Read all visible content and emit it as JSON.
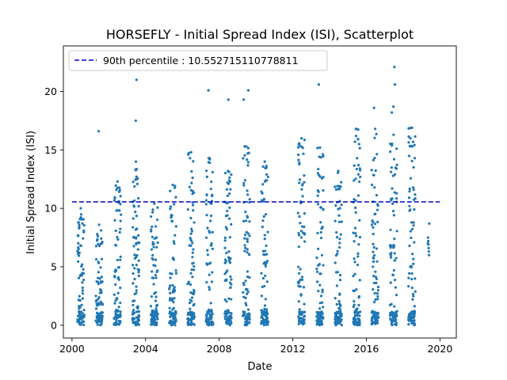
{
  "chart_data": {
    "type": "scatter",
    "title": "HORSEFLY - Initial Spread Index (ISI), Scatterplot",
    "xlabel": "Date",
    "ylabel": "Initial Spread Index (ISI)",
    "x_ticks": [
      "2000",
      "2004",
      "2008",
      "2012",
      "2016",
      "2020"
    ],
    "y_ticks": [
      "0",
      "5",
      "10",
      "15",
      "20"
    ],
    "xlim": [
      "1999-07-14",
      "2020-11-20"
    ],
    "ylim": [
      -1.1,
      23.9
    ],
    "point_color": "#1f77b4",
    "reference_line": {
      "label": "90th percentile : 10.552715110778811",
      "value": 10.552715110778811,
      "x_range": [
        "2000-01-01",
        "2019-12-31"
      ],
      "style": "dashed",
      "color": "#0000cc"
    },
    "legend": {
      "position": "top-left",
      "entries": [
        "90th percentile : 10.552715110778811"
      ]
    },
    "grid": false,
    "series": [
      {
        "seasons": [
          {
            "year": 2000,
            "start": "2000-04-15",
            "end": "2000-08-31",
            "ymax": 10.0
          },
          {
            "year": 2001,
            "start": "2001-04-15",
            "end": "2001-08-31",
            "ymax": 8.6
          },
          {
            "year": 2002,
            "start": "2002-04-15",
            "end": "2002-08-31",
            "ymax": 12.3
          },
          {
            "year": 2003,
            "start": "2003-04-15",
            "end": "2003-08-31",
            "ymax": 14.0
          },
          {
            "year": 2004,
            "start": "2004-04-15",
            "end": "2004-08-31",
            "ymax": 10.4
          },
          {
            "year": 2005,
            "start": "2005-04-15",
            "end": "2005-08-31",
            "ymax": 12.0
          },
          {
            "year": 2006,
            "start": "2006-04-15",
            "end": "2006-08-31",
            "ymax": 14.8
          },
          {
            "year": 2007,
            "start": "2007-04-15",
            "end": "2007-08-31",
            "ymax": 14.3
          },
          {
            "year": 2008,
            "start": "2008-04-15",
            "end": "2008-08-31",
            "ymax": 13.2
          },
          {
            "year": 2009,
            "start": "2009-04-15",
            "end": "2009-08-31",
            "ymax": 15.3
          },
          {
            "year": 2010,
            "start": "2010-04-15",
            "end": "2010-08-31",
            "ymax": 14.0
          },
          {
            "year": 2012,
            "start": "2012-04-15",
            "end": "2012-08-31",
            "ymax": 16.0
          },
          {
            "year": 2013,
            "start": "2013-04-15",
            "end": "2013-08-31",
            "ymax": 15.2
          },
          {
            "year": 2014,
            "start": "2014-04-15",
            "end": "2014-08-31",
            "ymax": 13.2
          },
          {
            "year": 2015,
            "start": "2015-04-15",
            "end": "2015-08-31",
            "ymax": 16.8
          },
          {
            "year": 2016,
            "start": "2016-04-15",
            "end": "2016-08-31",
            "ymax": 16.8
          },
          {
            "year": 2017,
            "start": "2017-04-15",
            "end": "2017-08-31",
            "ymax": 16.3
          },
          {
            "year": 2018,
            "start": "2018-04-15",
            "end": "2018-08-31",
            "ymax": 16.9
          }
        ],
        "sparse_points": [
          {
            "x": "2019-05-10",
            "y": 7.5
          },
          {
            "x": "2019-05-14",
            "y": 7.2
          },
          {
            "x": "2019-05-18",
            "y": 6.9
          },
          {
            "x": "2019-05-20",
            "y": 6.6
          },
          {
            "x": "2019-05-24",
            "y": 6.3
          },
          {
            "x": "2019-05-28",
            "y": 6.0
          },
          {
            "x": "2019-06-02",
            "y": 8.7
          },
          {
            "x": "2019-05-06",
            "y": 7.0
          }
        ],
        "outliers": [
          {
            "x": "2001-06-15",
            "y": 16.6
          },
          {
            "x": "2003-07-05",
            "y": 21.0
          },
          {
            "x": "2003-06-20",
            "y": 17.5
          },
          {
            "x": "2007-06-01",
            "y": 20.1
          },
          {
            "x": "2008-07-01",
            "y": 19.3
          },
          {
            "x": "2009-05-01",
            "y": 19.3
          },
          {
            "x": "2009-08-01",
            "y": 20.1
          },
          {
            "x": "2013-06-01",
            "y": 20.6
          },
          {
            "x": "2016-06-01",
            "y": 18.6
          },
          {
            "x": "2017-07-10",
            "y": 22.1
          },
          {
            "x": "2017-07-20",
            "y": 20.6
          },
          {
            "x": "2017-06-20",
            "y": 18.7
          },
          {
            "x": "2017-05-20",
            "y": 18.2
          }
        ]
      }
    ]
  }
}
